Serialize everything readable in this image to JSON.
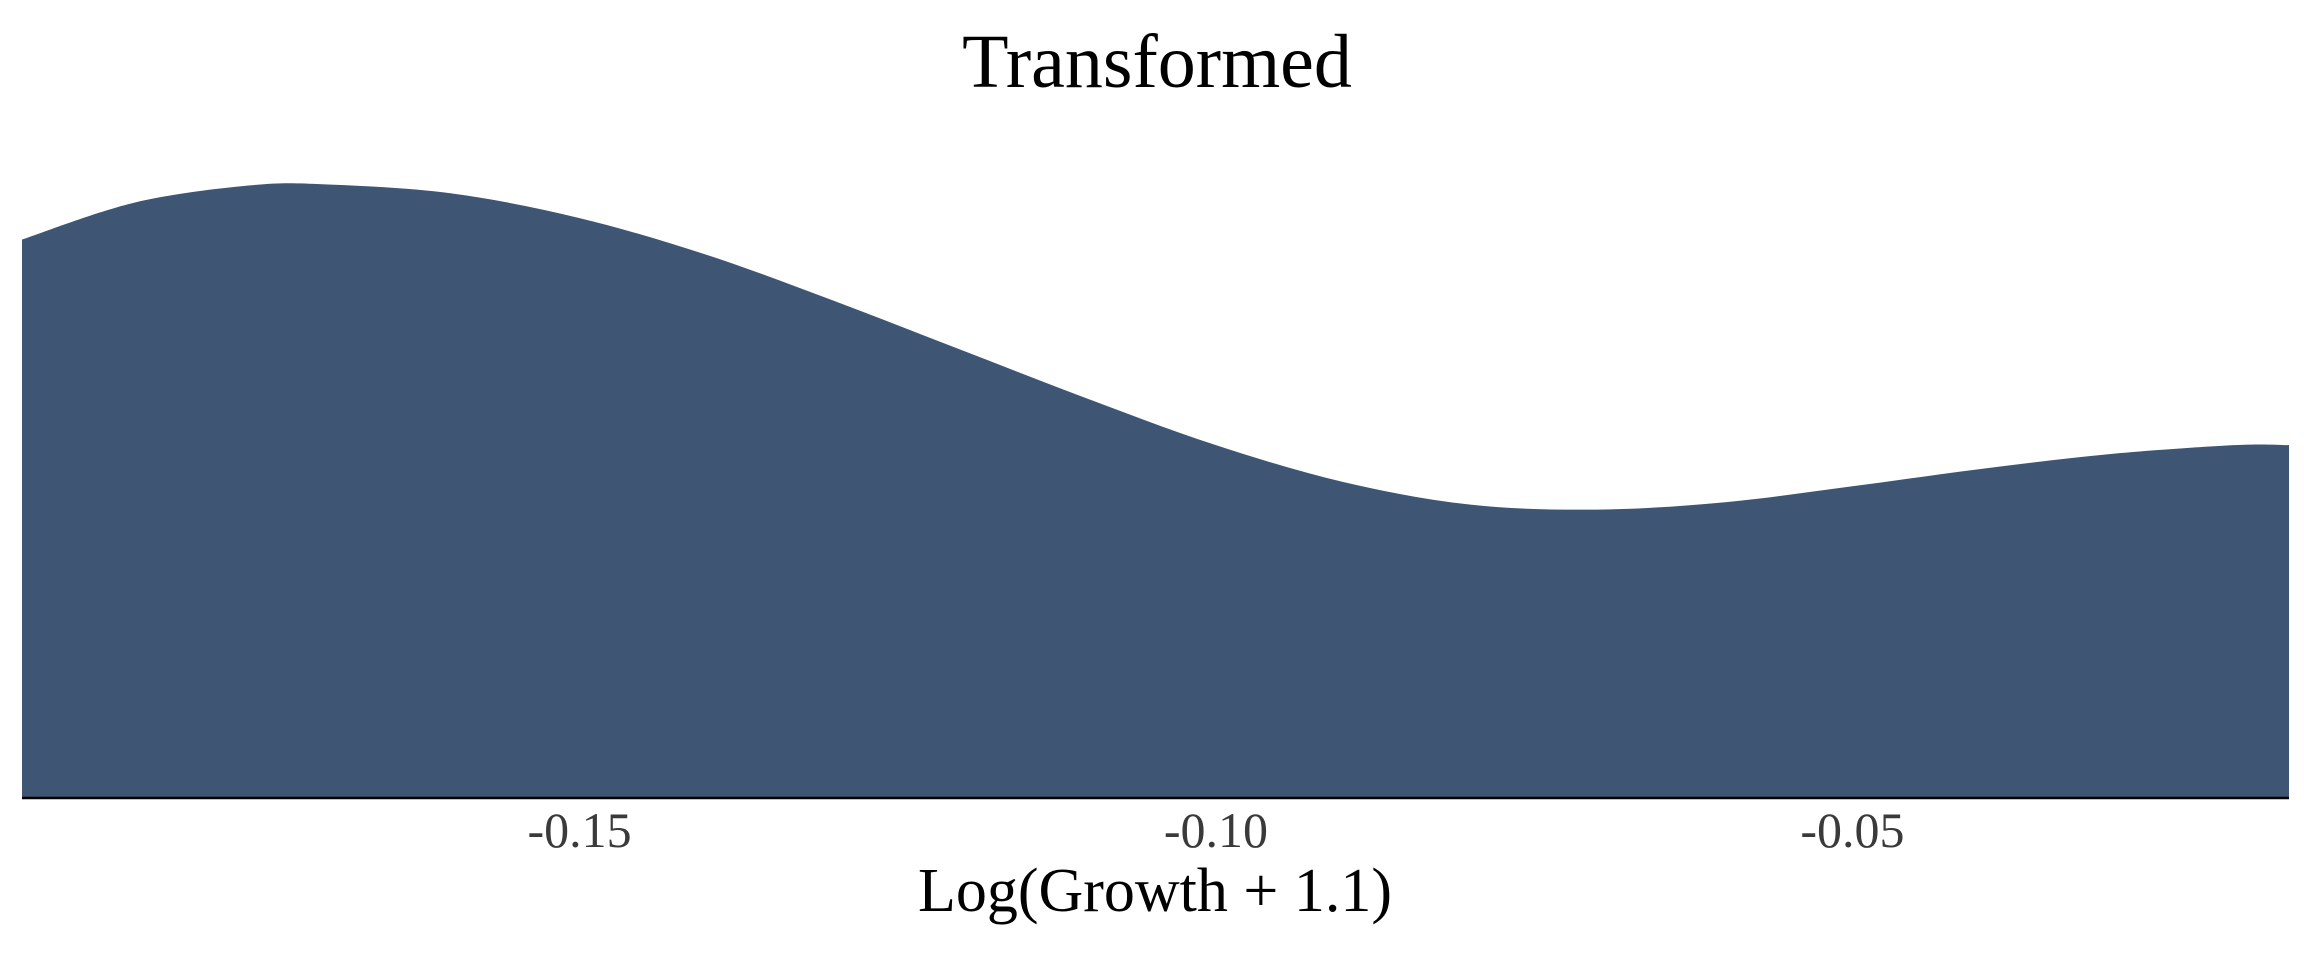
{
  "chart_data": {
    "type": "area",
    "title": "Transformed",
    "xlabel": "Log(Growth + 1.1)",
    "ylabel": "",
    "xlim": [
      -0.1938,
      -0.0157
    ],
    "ylim": [
      0,
      1.17
    ],
    "grid": false,
    "legend": "none",
    "x_ticks": [
      -0.15,
      -0.1,
      -0.05
    ],
    "x_tick_labels": [
      "-0.15",
      "-0.10",
      "-0.05"
    ],
    "fill_color": "#3e5673",
    "axis_color": "#000000",
    "series": [
      {
        "x": [
          -0.1938,
          -0.185,
          -0.176,
          -0.17,
          -0.16,
          -0.15,
          -0.14,
          -0.13,
          -0.12,
          -0.11,
          -0.1,
          -0.09,
          -0.08,
          -0.07,
          -0.06,
          -0.05,
          -0.04,
          -0.03,
          -0.02,
          -0.0157
        ],
        "values": [
          0.91,
          0.97,
          0.998,
          1.0,
          0.985,
          0.945,
          0.885,
          0.81,
          0.73,
          0.65,
          0.575,
          0.515,
          0.478,
          0.47,
          0.482,
          0.508,
          0.536,
          0.56,
          0.575,
          0.575
        ]
      }
    ]
  }
}
